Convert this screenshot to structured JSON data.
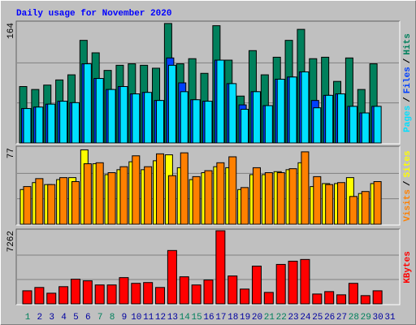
{
  "chart_data": [
    {
      "type": "bar",
      "title": "Daily usage for November 2020",
      "ylim": [
        0,
        164
      ],
      "yticks": [
        164
      ],
      "legend_separator": "/",
      "series": [
        {
          "name": "Hits",
          "color": "#00805c",
          "values": [
            77,
            73,
            79,
            86,
            93,
            140,
            123,
            99,
            106,
            108,
            106,
            102,
            163,
            108,
            115,
            95,
            160,
            113,
            64,
            126,
            93,
            117,
            140,
            155,
            115,
            117,
            84,
            116,
            73,
            108,
            null
          ]
        },
        {
          "name": "Files",
          "color": "#0040ff",
          "values": [
            47,
            49,
            53,
            57,
            55,
            108,
            88,
            73,
            77,
            67,
            69,
            58,
            116,
            82,
            59,
            57,
            113,
            81,
            52,
            70,
            51,
            87,
            90,
            97,
            58,
            65,
            67,
            50,
            41,
            50,
            null
          ]
        },
        {
          "name": "Pages",
          "color": "#00e0ff",
          "values": [
            47,
            49,
            53,
            57,
            55,
            108,
            88,
            73,
            77,
            67,
            69,
            58,
            106,
            70,
            59,
            57,
            113,
            81,
            46,
            70,
            51,
            87,
            90,
            97,
            48,
            65,
            67,
            50,
            41,
            50,
            null
          ]
        }
      ]
    },
    {
      "type": "bar",
      "ylim": [
        0,
        77
      ],
      "yticks": [
        77
      ],
      "legend_separator": "/",
      "series": [
        {
          "name": "Sites",
          "color": "#ffff00",
          "values": [
            35,
            42,
            40,
            45,
            47,
            75,
            61,
            50,
            55,
            63,
            55,
            64,
            70,
            57,
            45,
            52,
            58,
            57,
            35,
            50,
            50,
            53,
            55,
            62,
            38,
            41,
            41,
            47,
            31,
            41,
            null
          ]
        },
        {
          "name": "Visits",
          "color": "#ff8000",
          "values": [
            38,
            46,
            40,
            47,
            43,
            61,
            62,
            52,
            58,
            69,
            58,
            71,
            49,
            72,
            48,
            54,
            62,
            68,
            37,
            57,
            52,
            52,
            56,
            73,
            48,
            40,
            42,
            28,
            33,
            43,
            null
          ]
        }
      ]
    },
    {
      "type": "bar",
      "ylim": [
        0,
        7262
      ],
      "yticks": [
        7262
      ],
      "categories": [
        "1",
        "2",
        "3",
        "4",
        "5",
        "6",
        "7",
        "8",
        "9",
        "10",
        "11",
        "12",
        "13",
        "14",
        "15",
        "16",
        "17",
        "18",
        "19",
        "20",
        "21",
        "22",
        "23",
        "24",
        "25",
        "26",
        "27",
        "28",
        "29",
        "30",
        "31"
      ],
      "category_colors": [
        "#00805c",
        "#0000a0",
        "#0000a0",
        "#0000a0",
        "#0000a0",
        "#0000a0",
        "#00805c",
        "#00805c",
        "#0000a0",
        "#0000a0",
        "#0000a0",
        "#0000a0",
        "#0000a0",
        "#00805c",
        "#00805c",
        "#0000a0",
        "#0000a0",
        "#0000a0",
        "#0000a0",
        "#0000a0",
        "#00805c",
        "#00805c",
        "#0000a0",
        "#0000a0",
        "#0000a0",
        "#0000a0",
        "#0000a0",
        "#00805c",
        "#00805c",
        "#0000a0",
        "#0000a0"
      ],
      "series": [
        {
          "name": "KBytes",
          "color": "#ff0000",
          "values": [
            1300,
            1630,
            1060,
            1710,
            2450,
            2290,
            1880,
            1880,
            2610,
            2040,
            2120,
            1630,
            5300,
            2690,
            1880,
            2370,
            7262,
            2770,
            1470,
            3750,
            1140,
            3920,
            4240,
            4410,
            980,
            1220,
            900,
            2040,
            820,
            1300,
            null
          ]
        }
      ]
    }
  ]
}
